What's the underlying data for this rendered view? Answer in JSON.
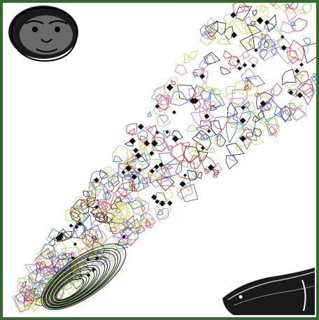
{
  "figure": {
    "frame_color": "#2f6b2a",
    "background": "#ffffff",
    "icons": {
      "top_left": "primate-head-sketch-icon",
      "bottom_right": "fish-sketch-icon"
    },
    "contour_colors": [
      "#3b6fe0",
      "#e23b3b",
      "#c07ce8",
      "#9fd66a",
      "#e0d24a",
      "#1a1a1a"
    ]
  }
}
